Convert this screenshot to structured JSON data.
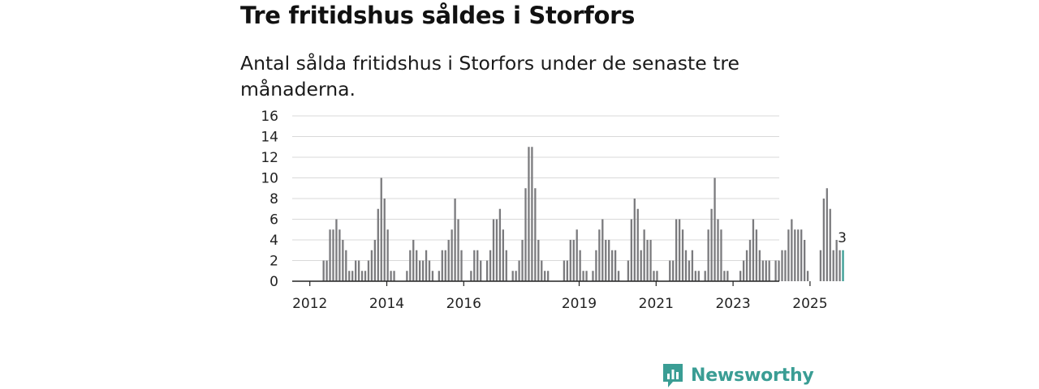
{
  "title": "Tre fritidshus såldes i Storfors",
  "subtitle": "Antal sålda fritidshus i Storfors under de senaste tre månaderna.",
  "brand": {
    "name": "Newsworthy",
    "icon": "newsworthy-logo-icon",
    "color": "#3a9d94"
  },
  "chart_data": {
    "type": "bar",
    "title": "Tre fritidshus såldes i Storfors",
    "subtitle": "Antal sålda fritidshus i Storfors under de senaste tre månaderna.",
    "xlabel": "",
    "ylabel": "",
    "ylim": [
      0,
      16
    ],
    "yticks": [
      0,
      2,
      4,
      6,
      8,
      10,
      12,
      14,
      16
    ],
    "grid": true,
    "x_start": "2011-07",
    "x_unit": "month",
    "xtick_labels": [
      {
        "label": "2012",
        "year": 2012
      },
      {
        "label": "2014",
        "year": 2014
      },
      {
        "label": "2016",
        "year": 2016
      },
      {
        "label": "2019",
        "year": 2019
      },
      {
        "label": "2021",
        "year": 2021
      },
      {
        "label": "2023",
        "year": 2023
      },
      {
        "label": "2025",
        "year": 2025
      }
    ],
    "values": [
      0,
      0,
      0,
      0,
      0,
      0,
      0,
      0,
      0,
      0,
      2,
      2,
      5,
      5,
      6,
      5,
      4,
      3,
      1,
      1,
      2,
      2,
      1,
      1,
      2,
      3,
      4,
      7,
      10,
      8,
      5,
      1,
      1,
      0,
      0,
      0,
      1,
      3,
      4,
      3,
      2,
      2,
      3,
      2,
      1,
      0,
      1,
      3,
      3,
      4,
      5,
      8,
      6,
      3,
      0,
      0,
      1,
      3,
      3,
      2,
      0,
      2,
      3,
      6,
      6,
      7,
      5,
      3,
      0,
      1,
      1,
      2,
      4,
      9,
      13,
      13,
      9,
      4,
      2,
      1,
      1,
      0,
      0,
      0,
      0,
      2,
      2,
      4,
      4,
      5,
      3,
      1,
      1,
      0,
      1,
      3,
      5,
      6,
      4,
      4,
      3,
      3,
      1,
      0,
      0,
      2,
      6,
      8,
      7,
      3,
      5,
      4,
      4,
      1,
      1,
      0,
      0,
      0,
      2,
      2,
      6,
      6,
      5,
      3,
      2,
      3,
      1,
      1,
      0,
      1,
      5,
      7,
      10,
      6,
      5,
      1,
      1,
      0,
      0,
      0,
      1,
      2,
      3,
      4,
      6,
      5,
      3,
      2,
      2,
      2,
      0,
      2,
      2,
      3,
      3,
      5,
      6,
      5,
      5,
      5,
      4,
      1,
      0,
      0,
      0,
      3,
      8,
      9,
      7,
      3,
      4,
      3,
      3
    ],
    "highlight": {
      "index": "last",
      "label": "3",
      "value": 3,
      "color": "#3a9d94"
    },
    "bar_color": "#7b7b7e"
  }
}
